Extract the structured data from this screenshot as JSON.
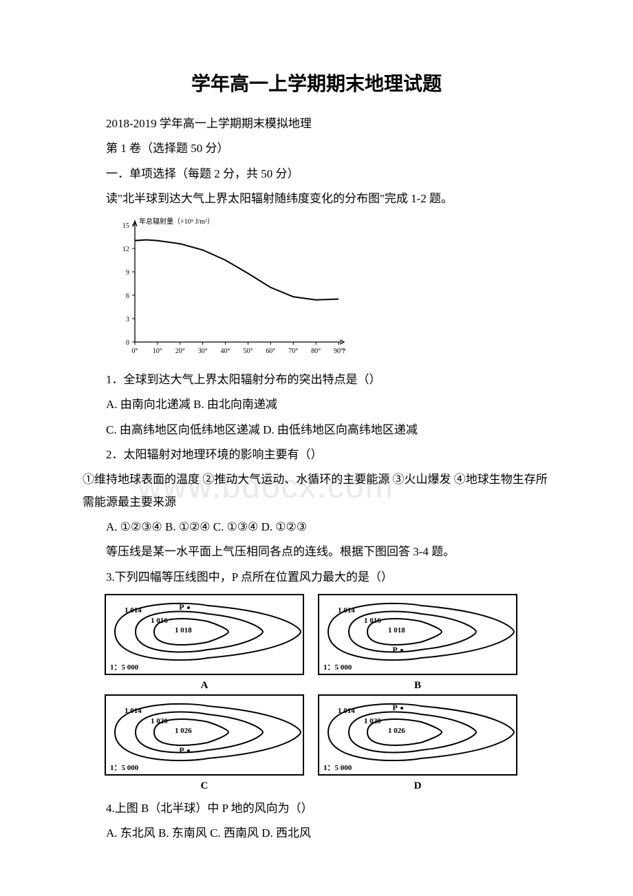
{
  "title": "学年高一上学期期末地理试题",
  "subtitle": "2018-2019 学年高一上学期期末模拟地理",
  "section1": "第 1 卷（选择题 50 分）",
  "section1_desc": "一．单项选择（每题 2 分，共 50 分）",
  "intro1": "读\"北半球到达大气上界太阳辐射随纬度变化的分布图\"完成 1-2 题。",
  "chart1": {
    "type": "line",
    "ylabel": "年总辐射量（×10⁹ J/m²）",
    "ylim": [
      0,
      15
    ],
    "ytick_step": 3,
    "yticks": [
      0,
      3,
      6,
      9,
      12,
      15
    ],
    "xlim": [
      0,
      90
    ],
    "xtick_step": 10,
    "xticks_labels": [
      "0°",
      "10°",
      "20°",
      "30°",
      "40°",
      "50°",
      "60°",
      "70°",
      "80°",
      "90°"
    ],
    "xunit": "N",
    "data": [
      {
        "x": 0,
        "y": 13.0
      },
      {
        "x": 5,
        "y": 13.1
      },
      {
        "x": 10,
        "y": 13.0
      },
      {
        "x": 20,
        "y": 12.6
      },
      {
        "x": 30,
        "y": 11.8
      },
      {
        "x": 40,
        "y": 10.5
      },
      {
        "x": 50,
        "y": 8.8
      },
      {
        "x": 60,
        "y": 7.0
      },
      {
        "x": 70,
        "y": 5.8
      },
      {
        "x": 80,
        "y": 5.4
      },
      {
        "x": 90,
        "y": 5.5
      }
    ],
    "line_color": "#000000",
    "axis_color": "#000000",
    "background_color": "#ffffff",
    "font_size": 10
  },
  "q1": "1．全球到达大气上界太阳辐射分布的突出特点是（）",
  "q1_optA": "A. 由南向北递减 B. 由北向南递减",
  "q1_optC": "C. 由高纬地区向低纬地区递减 D. 由低纬地区向高纬地区递减",
  "q2": "2．太阳辐射对地理环境的影响主要有（）",
  "q2_stmt": "①维持地球表面的温度 ②推动大气运动、水循环的主要能源 ③火山爆发 ④地球生物生存所需能源最主要来源",
  "q2_opts": "A. ①②③④ B. ①②④ C. ①③④ D. ①②③",
  "intro3": "等压线是某一水平面上气压相同各点的连线。根据下图回答 3-4 题。",
  "q3": "3.下列四幅等压线图中，P 点所在位置风力最大的是（）",
  "mini_charts": {
    "type": "isobar_maps",
    "common": {
      "scale_label": "1：5 000",
      "border_color": "#000000",
      "background_color": "#ffffff",
      "line_color": "#000000",
      "line_width": 2,
      "font_size": 11
    },
    "items": [
      {
        "label": "A",
        "lines": [
          "1 014",
          "1 016",
          "1 018"
        ],
        "P_pos": "top"
      },
      {
        "label": "B",
        "lines": [
          "1 014",
          "1 016",
          "1 018"
        ],
        "P_pos": "bottom"
      },
      {
        "label": "C",
        "lines": [
          "1 014",
          "1 020",
          "1 026"
        ],
        "P_pos": "bottom"
      },
      {
        "label": "D",
        "lines": [
          "1 014",
          "1 020",
          "1 026"
        ],
        "P_pos": "top"
      }
    ]
  },
  "q4": "4.上图 B（北半球）中 P 地的风向为（）",
  "q4_opts": "A. 东北风 B. 东南风 C. 西南风 D. 西北风",
  "watermark": "www.bdocx.com"
}
